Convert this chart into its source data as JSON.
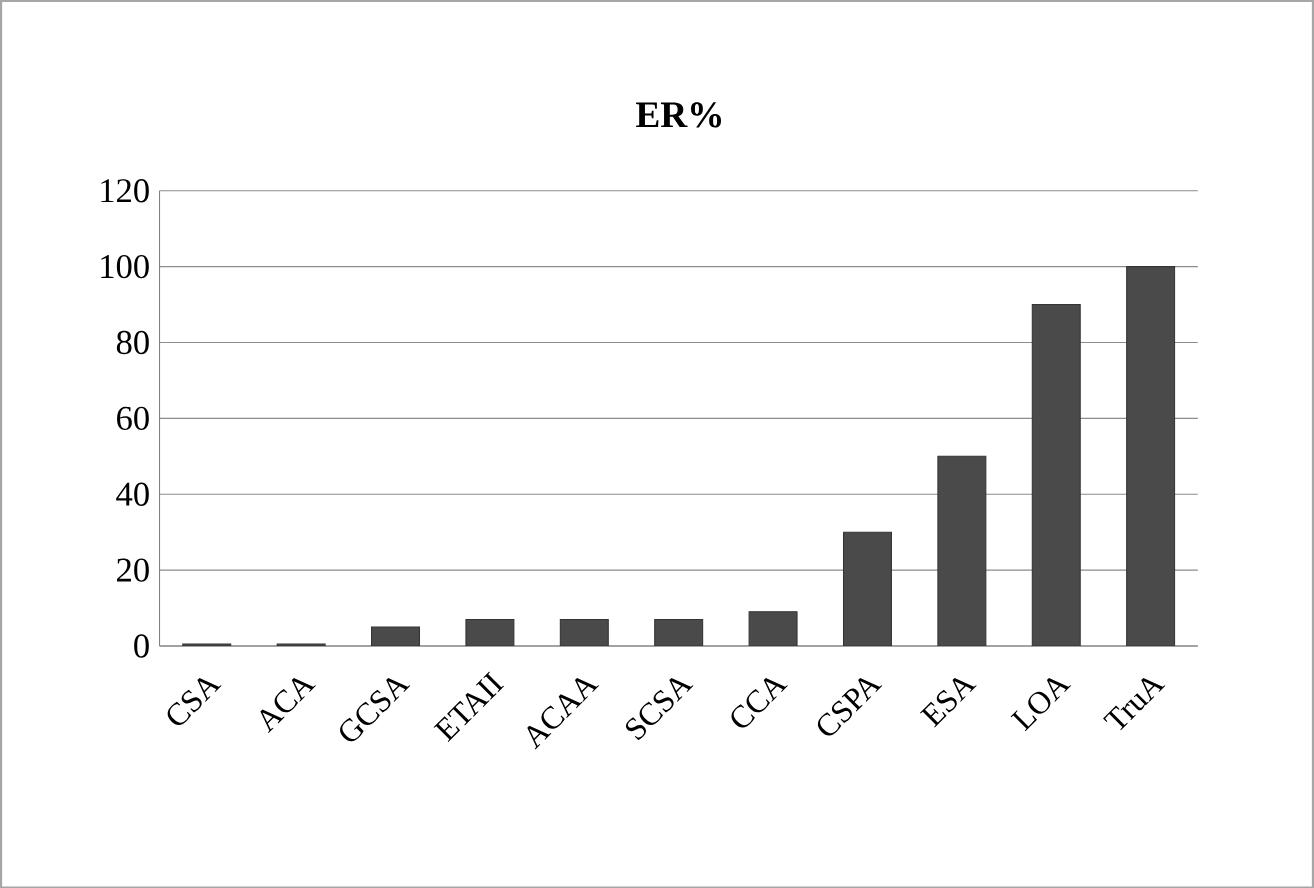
{
  "chart_data": {
    "type": "bar",
    "title": "ER%",
    "categories": [
      "CSA",
      "ACA",
      "GCSA",
      "ETAII",
      "ACAA",
      "SCSA",
      "CCA",
      "CSPA",
      "ESA",
      "LOA",
      "TruA"
    ],
    "values": [
      0.5,
      0.5,
      5,
      7,
      7,
      7,
      9,
      30,
      50,
      90,
      100
    ],
    "color": "#4a4a4a",
    "ylim": [
      0,
      120
    ],
    "yticks": [
      0,
      20,
      40,
      60,
      80,
      100,
      120
    ],
    "grid": "y"
  }
}
